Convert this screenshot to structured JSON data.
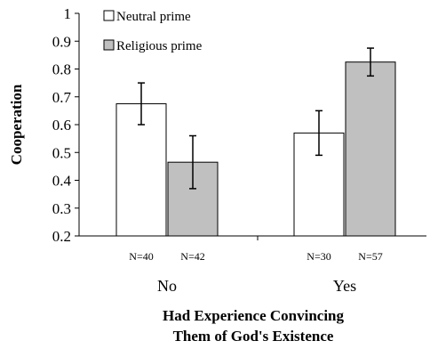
{
  "chart_data": {
    "type": "bar",
    "categories": [
      "No",
      "Yes"
    ],
    "category_counts": [
      [
        "N=40",
        "N=42"
      ],
      [
        "N=30",
        "N=57"
      ]
    ],
    "series": [
      {
        "name": "Neutral prime",
        "values": [
          0.675,
          0.57
        ],
        "errors": [
          0.075,
          0.08
        ],
        "color": "#ffffff"
      },
      {
        "name": "Religious prime",
        "values": [
          0.465,
          0.825
        ],
        "errors": [
          0.095,
          0.05
        ],
        "color": "#c0c0c0"
      }
    ],
    "ylabel": "Cooperation",
    "xlabel_lines": [
      "Had Experience Convincing",
      "Them of God's Existence"
    ],
    "ylim": [
      0.2,
      1
    ],
    "yticks": [
      "0.2",
      "0.3",
      "0.4",
      "0.5",
      "0.6",
      "0.7",
      "0.8",
      "0.9",
      "1"
    ],
    "legend_position": "top-left",
    "grid": false
  }
}
